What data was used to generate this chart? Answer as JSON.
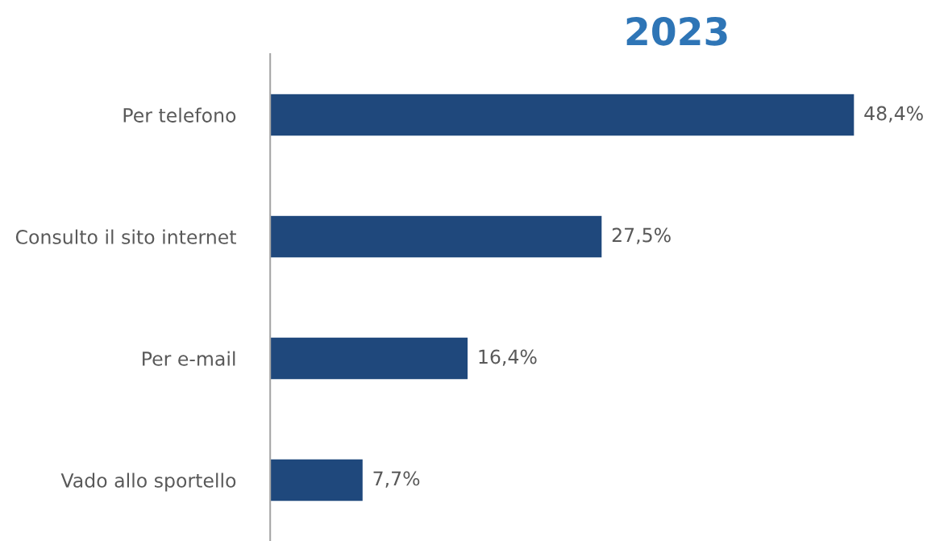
{
  "chart_data": {
    "type": "bar",
    "orientation": "horizontal",
    "title": "2023",
    "categories": [
      "Per telefono",
      "Consulto il sito internet",
      "Per e-mail",
      "Vado allo sportello"
    ],
    "values": [
      48.4,
      27.5,
      16.4,
      7.7
    ],
    "value_labels": [
      "48,4%",
      "27,5%",
      "16,4%",
      "7,7%"
    ],
    "color": "#1f487c",
    "tick_labels": "y",
    "grid": false,
    "legend": false
  }
}
